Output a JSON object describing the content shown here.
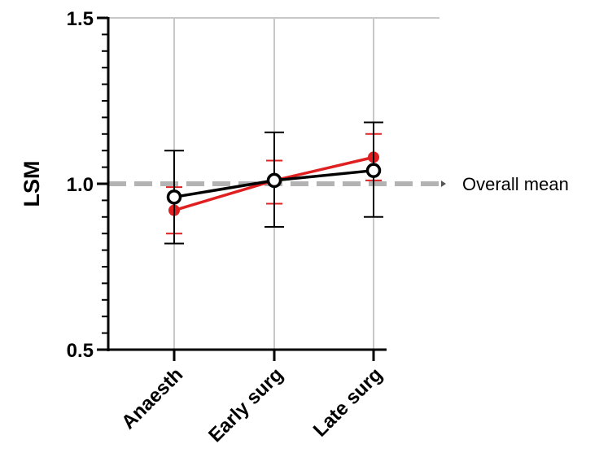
{
  "chart_data": {
    "type": "line",
    "ylabel": "LSM",
    "xlabel": "",
    "ylim": [
      0.5,
      1.5
    ],
    "yticks": [
      "0.5",
      "1.0",
      "1.5"
    ],
    "categories": [
      "Anaesth",
      "Early surg",
      "Late surg"
    ],
    "grid": "vertical lines at categories",
    "reference_line": {
      "value": 1.0,
      "label": "Overall mean",
      "color": "#b3b3b3",
      "style": "dashed"
    },
    "series": [
      {
        "color": "#e02020",
        "marker": "filled-circle",
        "values": [
          0.92,
          1.01,
          1.08
        ],
        "error": [
          {
            "lower": 0.85,
            "upper": 0.99
          },
          {
            "lower": 0.94,
            "upper": 1.07
          },
          {
            "lower": 1.01,
            "upper": 1.15
          }
        ]
      },
      {
        "color": "#000000",
        "marker": "open-circle",
        "values": [
          0.96,
          1.01,
          1.04
        ],
        "error": [
          {
            "lower": 0.82,
            "upper": 1.1
          },
          {
            "lower": 0.87,
            "upper": 1.155
          },
          {
            "lower": 0.9,
            "upper": 1.185
          }
        ]
      }
    ]
  }
}
